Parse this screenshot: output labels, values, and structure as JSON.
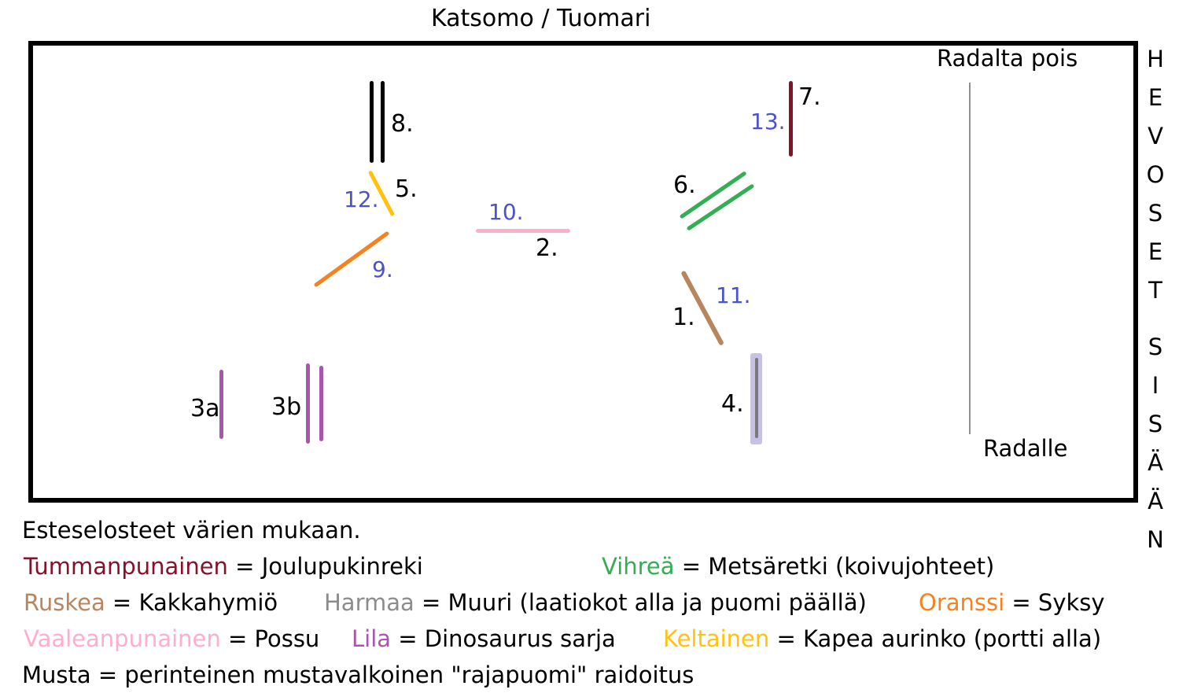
{
  "title": "Katsomo / Tuomari",
  "arena": {
    "exit_label": "Radalta pois",
    "enter_label": "Radalle"
  },
  "side_label": {
    "line1": "HEVOSET",
    "line2": "SISÄÄN"
  },
  "obstacles": {
    "n1": "1.",
    "n2": "2.",
    "n3a": "3a",
    "n3b": "3b",
    "n4": "4.",
    "n5": "5.",
    "n6": "6.",
    "n7": "7.",
    "n8": "8.",
    "n9": "9.",
    "n10": "10.",
    "n11": "11.",
    "n12": "12.",
    "n13": "13."
  },
  "legend": {
    "heading": "Esteselosteet värien mukaan.",
    "dark_red": {
      "name": "Tummanpunainen",
      "rest": " = Joulupukinreki"
    },
    "green": {
      "name": "Vihreä",
      "rest": " = Metsäretki (koivujohteet)"
    },
    "brown": {
      "name": "Ruskea",
      "rest": " = Kakkahymiö"
    },
    "gray": {
      "name": "Harmaa",
      "rest": " = Muuri (laatiokot alla ja puomi päällä)"
    },
    "orange": {
      "name": "Oranssi",
      "rest": " = Syksy"
    },
    "pink": {
      "name": "Vaaleanpunainen",
      "rest": " = Possu"
    },
    "purple": {
      "name": "Lila",
      "rest": " = Dinosaurus sarja"
    },
    "yellow": {
      "name": "Keltainen",
      "rest": " = Kapea aurinko (portti alla)"
    },
    "black_line": "Musta = perinteinen mustavalkoinen \"rajapuomi\" raidoitus"
  },
  "colors": {
    "dark_red": "#86122a",
    "green": "#33ae52",
    "brown": "#b9855f",
    "gray": "#8c8c8c",
    "orange": "#f58220",
    "pink": "#ffaec9",
    "purple": "#a855ae",
    "yellow": "#ffc20e",
    "lavender": "#c7c2e4",
    "blue_label": "#4a53c8",
    "black": "#000000"
  }
}
